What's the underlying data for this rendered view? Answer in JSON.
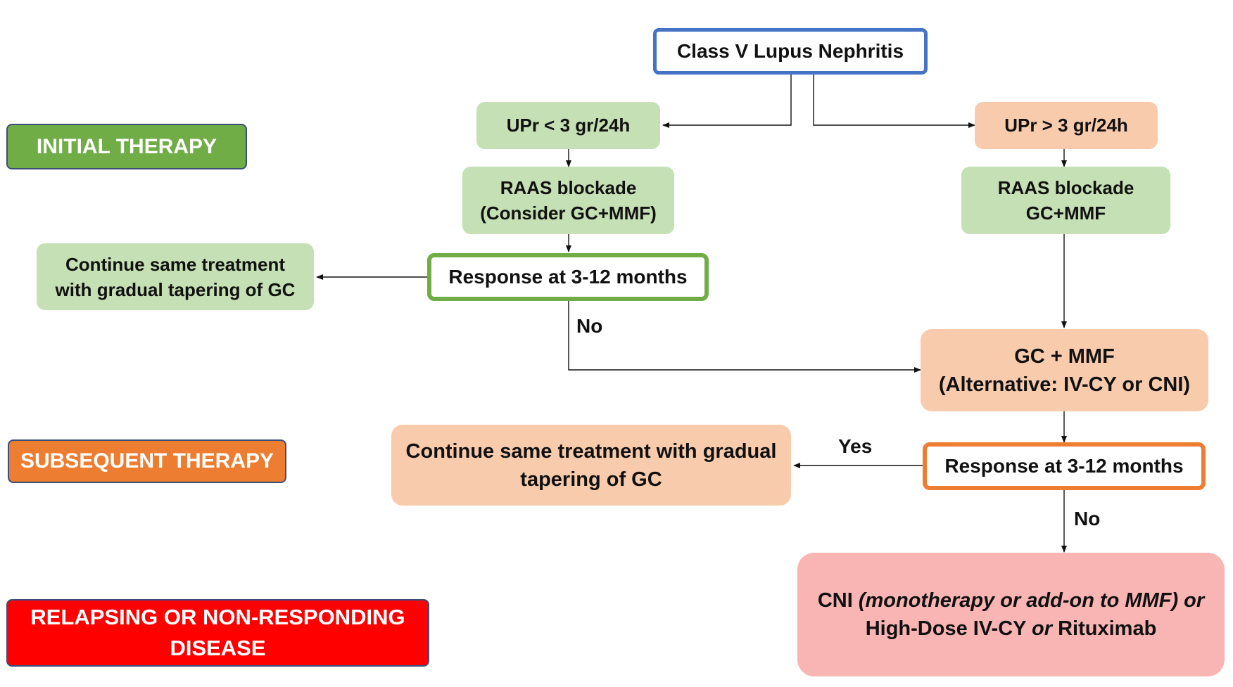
{
  "phase_labels": {
    "initial": "INITIAL THERAPY",
    "subsequent": "SUBSEQUENT THERAPY",
    "relapse": "RELAPSING OR NON-RESPONDING DISEASE"
  },
  "nodes": {
    "root": "Class V Lupus Nephritis",
    "upr_low": "UPr < 3 gr/24h",
    "upr_high": "UPr > 3 gr/24h",
    "raas_low_line1": "RAAS blockade",
    "raas_low_line2": "(Consider GC+MMF)",
    "raas_high_line1": "RAAS blockade",
    "raas_high_line2": "GC+MMF",
    "response_low": "Response at 3-12 months",
    "continue_low_line1": "Continue same treatment",
    "continue_low_line2": "with gradual tapering of GC",
    "gc_mmf_line1": "GC + MMF",
    "gc_mmf_line2": "(Alternative: IV-CY or CNI)",
    "response_high": "Response at 3-12 months",
    "continue_high_line1": "Continue same treatment with gradual",
    "continue_high_line2": "tapering of GC",
    "rescue_cni": "CNI ",
    "rescue_cni_note": "(monotherapy or add-on to MMF) or",
    "rescue_hd": "High-Dose IV-CY ",
    "rescue_or": "or",
    "rescue_rtx": " Rituximab"
  },
  "edge_labels": {
    "no_low": "No",
    "yes_high": "Yes",
    "no_high": "No"
  },
  "colors": {
    "root_border": "#4472c4",
    "response_low_border": "#70ad47",
    "response_high_border": "#ed7d31",
    "green_fill": "#c5e0b4",
    "peach_fill": "#f8cbad",
    "pink_fill": "#f9b4b4",
    "label_initial": "#70ad47",
    "label_subsequent": "#ed7d31",
    "label_relapse": "#ff0000"
  }
}
